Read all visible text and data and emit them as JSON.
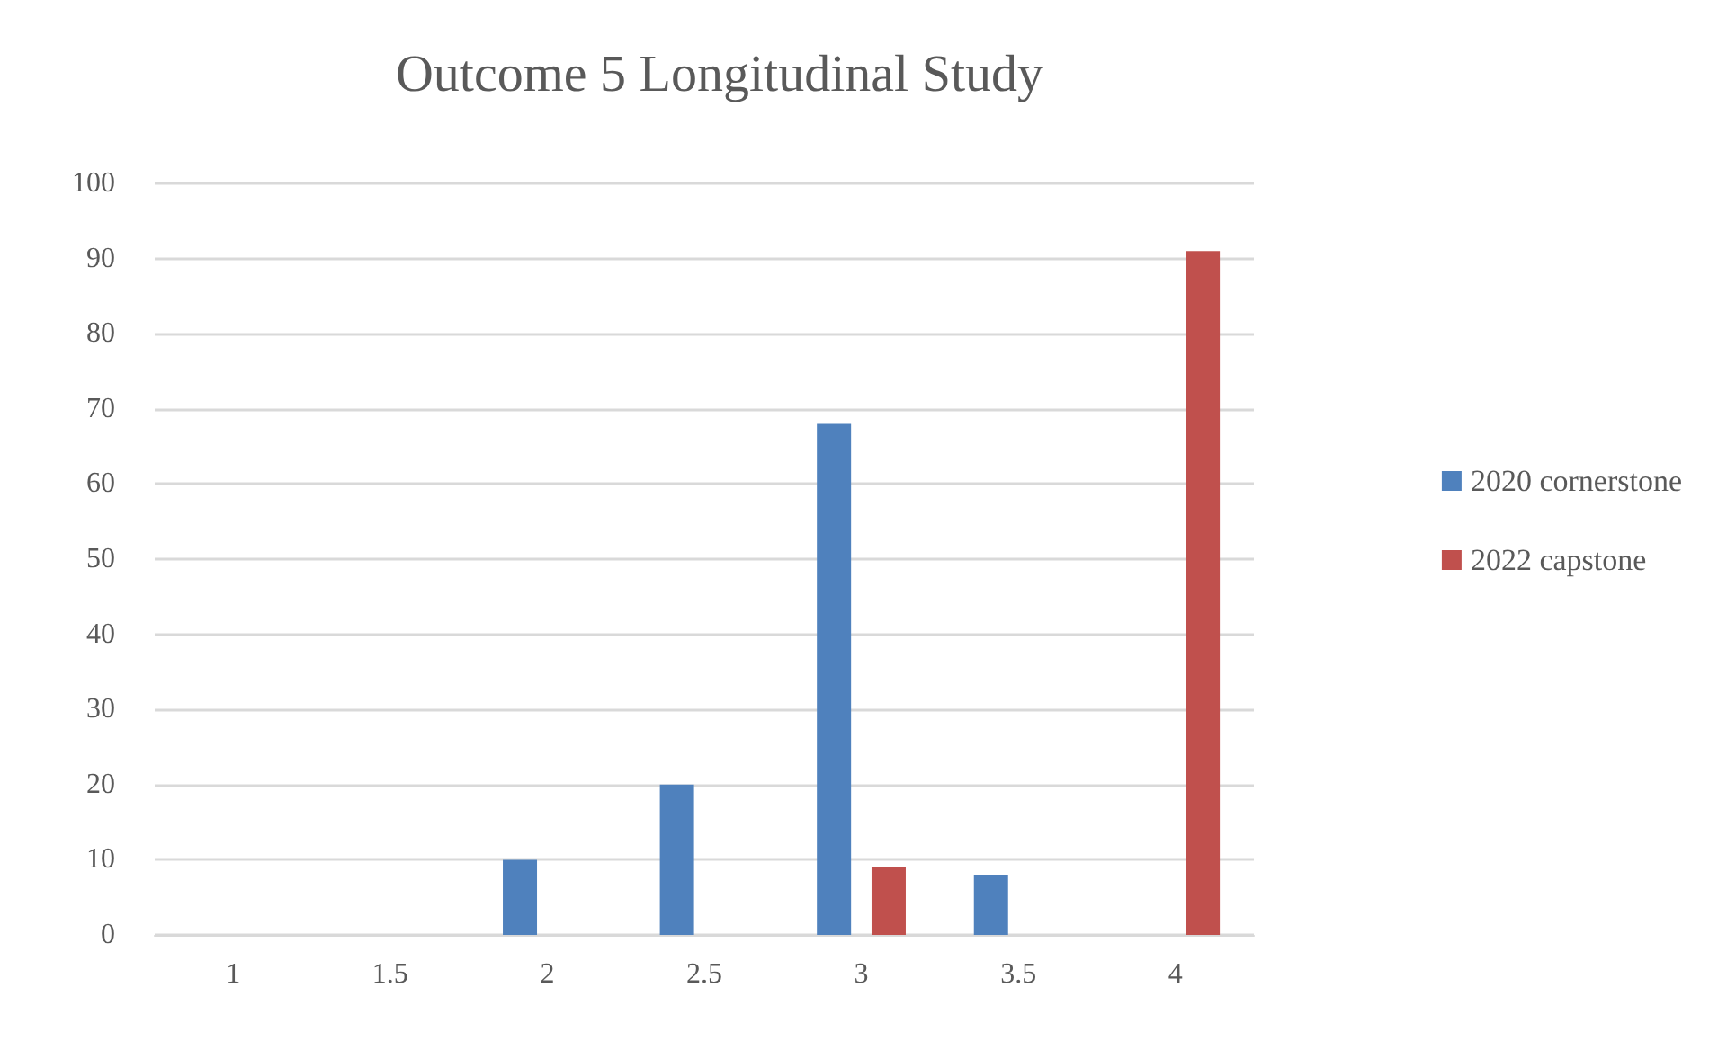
{
  "chart_data": {
    "type": "bar",
    "title": "Outcome 5 Longitudinal Study",
    "categories": [
      "1",
      "1.5",
      "2",
      "2.5",
      "3",
      "3.5",
      "4"
    ],
    "series": [
      {
        "name": "2020 cornerstone",
        "color": "#4f81bd",
        "values": [
          0,
          0,
          10,
          20,
          68,
          8,
          0
        ]
      },
      {
        "name": "2022 capstone",
        "color": "#c0504d",
        "values": [
          0,
          0,
          0,
          0,
          9,
          0,
          91
        ]
      }
    ],
    "ylim": [
      0,
      100
    ],
    "yticks": [
      0,
      10,
      20,
      30,
      40,
      50,
      60,
      70,
      80,
      90,
      100
    ],
    "grid": "y",
    "legend": "right"
  }
}
